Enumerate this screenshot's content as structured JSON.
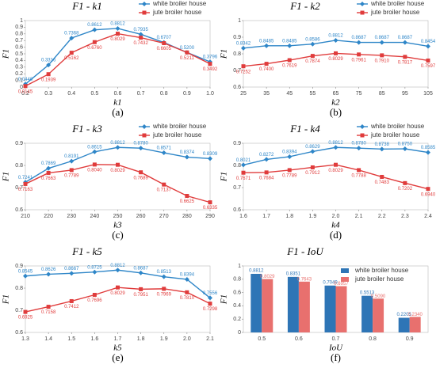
{
  "chart_data": [
    {
      "type": "line",
      "title": "F1 - k1",
      "xlabel": "k1",
      "ylabel": "F1",
      "caption": "(a)",
      "legend": true,
      "x": [
        0.2,
        0.3,
        0.4,
        0.5,
        0.6,
        0.7,
        0.8,
        0.9,
        1.0
      ],
      "xlim": [
        0.2,
        1.0
      ],
      "xticks": [
        0.2,
        0.3,
        0.4,
        0.5,
        0.6,
        0.7,
        0.8,
        0.9,
        {
          "value": 1,
          "label": "1.0"
        }
      ],
      "ylim": [
        0,
        1
      ],
      "yticks": [
        0,
        0.1,
        0.2,
        0.3,
        0.4,
        0.5,
        0.6,
        0.7,
        0.8,
        0.9,
        1
      ],
      "series": [
        {
          "name": "white broiler house",
          "color": "#2e86c8",
          "marker": "diamond",
          "values": [
            0.044,
            0.3316,
            0.7368,
            0.8612,
            0.8812,
            0.7935,
            0.6707,
            0.52,
            0.3796
          ],
          "value_labels": [
            "0.0440",
            "0.3316",
            "0.7368",
            "0.8612",
            "0.8812",
            "0.7935",
            "0.6707",
            "0.5200",
            "0.3796"
          ]
        },
        {
          "name": "jute broiler house",
          "color": "#e03c3c",
          "marker": "square",
          "values": [
            0.0145,
            0.1939,
            0.5162,
            0.676,
            0.8029,
            0.7432,
            0.6605,
            0.5211,
            0.3492
          ],
          "value_labels": [
            "0.0145",
            "0.1939",
            "0.5162",
            "0.6760",
            "0.8029",
            "0.7432",
            "0.6605",
            "0.5211",
            "0.3492"
          ]
        }
      ]
    },
    {
      "type": "line",
      "title": "F1 - k2",
      "xlabel": "k2",
      "ylabel": "F1",
      "caption": "(b)",
      "legend": true,
      "x": [
        25,
        35,
        45,
        55,
        65,
        75,
        85,
        95,
        105
      ],
      "xlim": [
        25,
        105
      ],
      "xticks": [
        25,
        35,
        45,
        55,
        65,
        75,
        85,
        95,
        105
      ],
      "ylim": [
        0.6,
        1
      ],
      "yticks": [
        0.6,
        0.7,
        0.8,
        0.9,
        1
      ],
      "series": [
        {
          "name": "white broiler house",
          "color": "#2e86c8",
          "marker": "diamond",
          "values": [
            0.8342,
            0.8485,
            0.8485,
            0.8586,
            0.8812,
            0.8687,
            0.8687,
            0.8687,
            0.8454
          ],
          "value_labels": [
            "0.8342",
            "0.8485",
            "0.8485",
            "0.8586",
            "0.8812",
            "0.8687",
            "0.8687",
            "0.8687",
            "0.8454"
          ]
        },
        {
          "name": "jute broiler house",
          "color": "#e03c3c",
          "marker": "square",
          "values": [
            0.7252,
            0.74,
            0.7619,
            0.7874,
            0.8029,
            0.7961,
            0.791,
            0.7817,
            0.7597
          ],
          "value_labels": [
            "0.7252",
            "0.7400",
            "0.7619",
            "0.7874",
            "0.8029",
            "0.7961",
            "0.7910",
            "0.7817",
            "0.7597"
          ]
        }
      ]
    },
    {
      "type": "line",
      "title": "F1 - k3",
      "xlabel": "k3",
      "ylabel": "F1",
      "caption": "(c)",
      "legend": true,
      "x": [
        210,
        220,
        230,
        240,
        250,
        260,
        270,
        280,
        290
      ],
      "xlim": [
        210,
        290
      ],
      "xticks": [
        210,
        220,
        230,
        240,
        250,
        260,
        270,
        280,
        290
      ],
      "ylim": [
        0.6,
        0.9
      ],
      "yticks": [
        0.6,
        0.7,
        0.8,
        0.9
      ],
      "series": [
        {
          "name": "white broiler house",
          "color": "#2e86c8",
          "marker": "diamond",
          "values": [
            0.7241,
            0.7869,
            0.8191,
            0.8615,
            0.8812,
            0.878,
            0.8571,
            0.8374,
            0.8309
          ],
          "value_labels": [
            "0.7241",
            "0.7869",
            "0.8191",
            "0.8615",
            "0.8812",
            "0.8780",
            "0.8571",
            "0.8374",
            "0.8309"
          ]
        },
        {
          "name": "jute broiler house",
          "color": "#e03c3c",
          "marker": "square",
          "values": [
            0.7163,
            0.7663,
            0.7789,
            0.804,
            0.8029,
            0.7689,
            0.7137,
            0.6625,
            0.6335
          ],
          "value_labels": [
            "0.7163",
            "0.7663",
            "0.7789",
            "0.8040",
            "0.8029",
            "0.7689",
            "0.7137",
            "0.6625",
            "0.6335"
          ]
        }
      ]
    },
    {
      "type": "line",
      "title": "F1 - k4",
      "xlabel": "k4",
      "ylabel": "F1",
      "caption": "(d)",
      "legend": true,
      "x": [
        1.6,
        1.7,
        1.8,
        1.9,
        2.0,
        2.1,
        2.2,
        2.3,
        2.4
      ],
      "xlim": [
        1.6,
        2.4
      ],
      "xticks": [
        1.6,
        1.7,
        1.8,
        1.9,
        {
          "value": 2,
          "label": "2.0"
        },
        2.1,
        2.2,
        2.3,
        2.4
      ],
      "ylim": [
        0.6,
        0.9
      ],
      "yticks": [
        0.6,
        0.7,
        0.8,
        0.9
      ],
      "series": [
        {
          "name": "white broiler house",
          "color": "#2e86c8",
          "marker": "diamond",
          "values": [
            0.8021,
            0.8272,
            0.8394,
            0.8629,
            0.8812,
            0.878,
            0.8738,
            0.875,
            0.8585
          ],
          "value_labels": [
            "0.8021",
            "0.8272",
            "0.8394",
            "0.8629",
            "0.8812",
            "0.8780",
            "0.8738",
            "0.8750",
            "0.8585"
          ]
        },
        {
          "name": "jute broiler house",
          "color": "#e03c3c",
          "marker": "square",
          "values": [
            0.7671,
            0.7684,
            0.7789,
            0.7912,
            0.8029,
            0.7788,
            0.7483,
            0.7202,
            0.694
          ],
          "value_labels": [
            "0.7671",
            "0.7684",
            "0.7789",
            "0.7912",
            "0.8029",
            "0.7788",
            "0.7483",
            "0.7202",
            "0.6940"
          ]
        }
      ]
    },
    {
      "type": "line",
      "title": "F1 - k5",
      "xlabel": "k5",
      "ylabel": "F1",
      "caption": "(e)",
      "legend": false,
      "x": [
        1.3,
        1.4,
        1.5,
        1.6,
        1.7,
        1.8,
        1.9,
        2.0,
        2.1
      ],
      "xlim": [
        1.3,
        2.1
      ],
      "xticks": [
        1.3,
        1.4,
        1.5,
        1.6,
        1.7,
        1.8,
        1.9,
        {
          "value": 2,
          "label": "2.0"
        },
        2.1
      ],
      "ylim": [
        0.6,
        0.9
      ],
      "yticks": [
        0.6,
        0.7,
        0.8,
        0.9
      ],
      "series": [
        {
          "name": "white broiler house",
          "color": "#2e86c8",
          "marker": "diamond",
          "values": [
            0.8545,
            0.8626,
            0.8667,
            0.8725,
            0.8812,
            0.8687,
            0.8513,
            0.8394,
            0.7556
          ],
          "value_labels": [
            "0.8545",
            "0.8626",
            "0.8667",
            "0.8725",
            "0.8812",
            "0.8687",
            "0.8513",
            "0.8394",
            "0.7556"
          ]
        },
        {
          "name": "jute broiler house",
          "color": "#e03c3c",
          "marker": "square",
          "values": [
            0.6925,
            0.7158,
            0.7412,
            0.7696,
            0.8029,
            0.7951,
            0.7969,
            0.781,
            0.7298
          ],
          "value_labels": [
            "0.6925",
            "0.7158",
            "0.7412",
            "0.7696",
            "0.8029",
            "0.7951",
            "0.7969",
            "0.7810",
            "0.7298"
          ]
        }
      ]
    },
    {
      "type": "bar",
      "title": "F1 - IoU",
      "xlabel": "IoU",
      "ylabel": "F1",
      "caption": "(f)",
      "legend": true,
      "categories": [
        "0.5",
        "0.6",
        "0.7",
        "0.8",
        "0.9"
      ],
      "ylim": [
        0,
        1
      ],
      "yticks": [
        0,
        0.2,
        0.4,
        0.6,
        0.8,
        1
      ],
      "series": [
        {
          "name": "white broiler house",
          "color": "#2e75b6",
          "values": [
            0.8812,
            0.8351,
            0.7049,
            0.5513,
            0.2205
          ],
          "value_labels": [
            "0.8812",
            "0.8351",
            "0.7049",
            "0.5513",
            "0.2205"
          ]
        },
        {
          "name": "jute broiler house",
          "color": "#e8706e",
          "values": [
            0.8029,
            0.7643,
            0.6957,
            0.509,
            0.234
          ],
          "value_labels": [
            "0.8029",
            "0.7643",
            "0.6957",
            "0.5090",
            "0.2340"
          ]
        }
      ]
    }
  ]
}
